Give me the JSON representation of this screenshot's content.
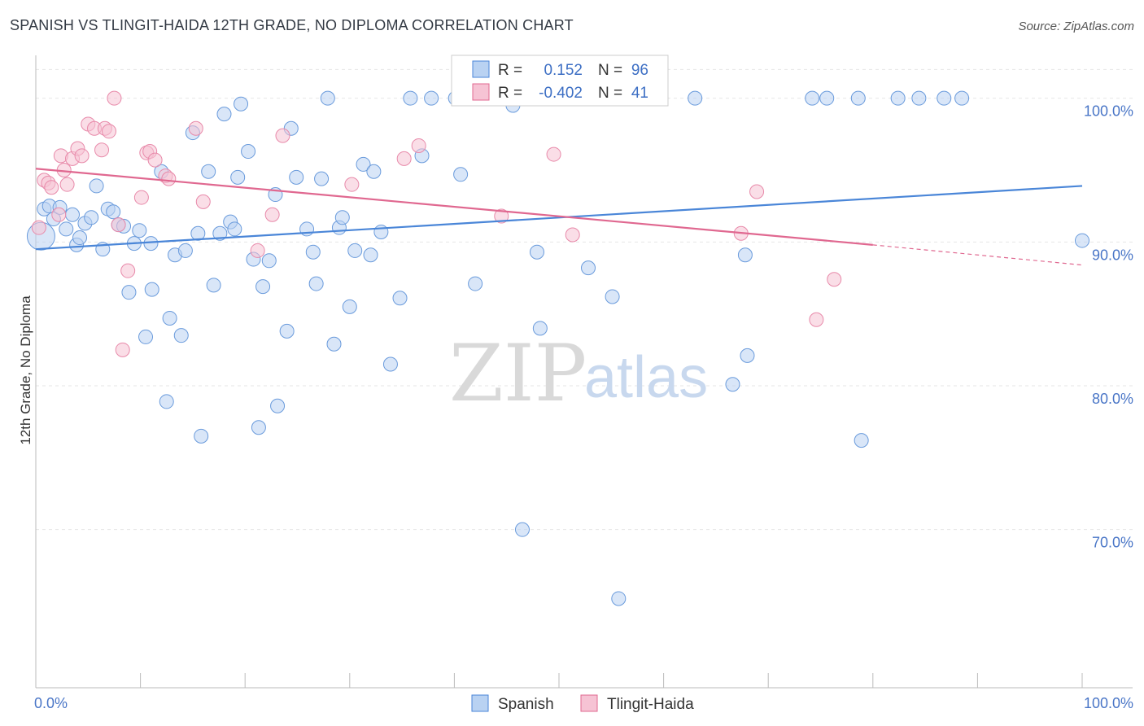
{
  "title": "SPANISH VS TLINGIT-HAIDA 12TH GRADE, NO DIPLOMA CORRELATION CHART",
  "source": "Source: ZipAtlas.com",
  "watermark": {
    "zip": "ZIP",
    "atlas": "atlas"
  },
  "colors": {
    "blue": "#4a86d8",
    "blue_fill": "#b9d2f2",
    "pink": "#e06890",
    "pink_fill": "#f6c3d4",
    "grid": "#e3e3e3",
    "axis_text": "#4a76c7"
  },
  "chart_data": {
    "type": "scatter",
    "title": "SPANISH VS TLINGIT-HAIDA 12TH GRADE, NO DIPLOMA CORRELATION CHART",
    "xlabel": "",
    "ylabel": "12th Grade, No Diploma",
    "xlim": [
      0,
      100
    ],
    "ylim": [
      59,
      104
    ],
    "x_tick_labels": [
      "0.0%",
      "100.0%"
    ],
    "y_ticks": [
      70,
      80,
      90,
      100
    ],
    "y_tick_labels": [
      "70.0%",
      "80.0%",
      "90.0%",
      "100.0%"
    ],
    "grid": true,
    "legend": {
      "position": "top-center",
      "entries": [
        {
          "series": "Spanish",
          "r_label": "R =",
          "r_value": "0.152",
          "n_label": "N =",
          "n_value": "96"
        },
        {
          "series": "Tlingit-Haida",
          "r_label": "R =",
          "r_value": "-0.402",
          "n_label": "N =",
          "n_value": "41"
        }
      ]
    },
    "series": [
      {
        "name": "Spanish",
        "color": "#4a86d8",
        "trend": {
          "x": [
            0,
            100
          ],
          "y": [
            89.5,
            93.9
          ]
        },
        "points": [
          [
            0.5,
            90.4
          ],
          [
            0.8,
            92.3
          ],
          [
            1.3,
            92.5
          ],
          [
            1.7,
            91.6
          ],
          [
            2.3,
            92.4
          ],
          [
            2.9,
            90.9
          ],
          [
            3.5,
            91.9
          ],
          [
            3.9,
            89.8
          ],
          [
            4.2,
            90.3
          ],
          [
            4.7,
            91.3
          ],
          [
            5.3,
            91.7
          ],
          [
            5.8,
            93.9
          ],
          [
            6.4,
            89.5
          ],
          [
            6.9,
            92.3
          ],
          [
            7.4,
            92.1
          ],
          [
            7.9,
            91.2
          ],
          [
            8.4,
            91.1
          ],
          [
            8.9,
            86.5
          ],
          [
            9.4,
            89.9
          ],
          [
            9.9,
            90.8
          ],
          [
            10.5,
            83.4
          ],
          [
            11.0,
            89.9
          ],
          [
            11.1,
            86.7
          ],
          [
            12.0,
            94.9
          ],
          [
            12.5,
            78.9
          ],
          [
            12.8,
            84.7
          ],
          [
            13.3,
            89.1
          ],
          [
            13.9,
            83.5
          ],
          [
            14.3,
            89.4
          ],
          [
            15.0,
            97.6
          ],
          [
            15.5,
            90.6
          ],
          [
            15.8,
            76.5
          ],
          [
            16.5,
            94.9
          ],
          [
            17.0,
            87.0
          ],
          [
            17.6,
            90.6
          ],
          [
            18.0,
            98.9
          ],
          [
            18.6,
            91.4
          ],
          [
            19.0,
            90.9
          ],
          [
            19.3,
            94.5
          ],
          [
            19.6,
            99.6
          ],
          [
            20.3,
            96.3
          ],
          [
            20.8,
            88.8
          ],
          [
            21.3,
            77.1
          ],
          [
            21.7,
            86.9
          ],
          [
            22.3,
            88.7
          ],
          [
            22.9,
            93.3
          ],
          [
            23.1,
            78.6
          ],
          [
            24.0,
            83.8
          ],
          [
            24.4,
            97.9
          ],
          [
            24.9,
            94.5
          ],
          [
            25.9,
            90.9
          ],
          [
            26.5,
            89.3
          ],
          [
            26.8,
            87.1
          ],
          [
            27.3,
            94.4
          ],
          [
            27.9,
            100.0
          ],
          [
            28.5,
            82.9
          ],
          [
            29.0,
            91.0
          ],
          [
            29.3,
            91.7
          ],
          [
            30.0,
            85.5
          ],
          [
            30.5,
            89.4
          ],
          [
            31.3,
            95.4
          ],
          [
            32.0,
            89.1
          ],
          [
            32.3,
            94.9
          ],
          [
            33.0,
            90.7
          ],
          [
            33.9,
            81.5
          ],
          [
            34.8,
            86.1
          ],
          [
            35.8,
            100.0
          ],
          [
            36.9,
            96.0
          ],
          [
            37.8,
            100.0
          ],
          [
            40.1,
            100.0
          ],
          [
            40.6,
            94.7
          ],
          [
            42.0,
            87.1
          ],
          [
            45.6,
            99.5
          ],
          [
            46.5,
            70.0
          ],
          [
            47.9,
            89.3
          ],
          [
            48.2,
            84.0
          ],
          [
            51.5,
            100.0
          ],
          [
            52.3,
            100.0
          ],
          [
            52.8,
            88.2
          ],
          [
            55.1,
            86.2
          ],
          [
            55.7,
            65.2
          ],
          [
            56.3,
            100.0
          ],
          [
            59.2,
            100.0
          ],
          [
            63.0,
            100.0
          ],
          [
            66.6,
            80.1
          ],
          [
            67.8,
            89.1
          ],
          [
            68.0,
            82.1
          ],
          [
            74.2,
            100.0
          ],
          [
            75.6,
            100.0
          ],
          [
            78.6,
            100.0
          ],
          [
            78.9,
            76.2
          ],
          [
            82.4,
            100.0
          ],
          [
            84.4,
            100.0
          ],
          [
            86.8,
            100.0
          ],
          [
            88.5,
            100.0
          ],
          [
            100.0,
            90.1
          ]
        ]
      },
      {
        "name": "Tlingit-Haida",
        "color": "#e06890",
        "trend": {
          "x": [
            0,
            80
          ],
          "y": [
            95.1,
            89.8
          ]
        },
        "trend_dashed": {
          "x": [
            80,
            100
          ],
          "y": [
            89.8,
            88.4
          ]
        },
        "points": [
          [
            0.3,
            91.0
          ],
          [
            0.8,
            94.3
          ],
          [
            1.2,
            94.1
          ],
          [
            1.5,
            93.8
          ],
          [
            2.2,
            91.9
          ],
          [
            2.4,
            96.0
          ],
          [
            2.7,
            95.0
          ],
          [
            3.0,
            94.0
          ],
          [
            3.5,
            95.8
          ],
          [
            4.0,
            96.5
          ],
          [
            4.4,
            96.0
          ],
          [
            5.0,
            98.2
          ],
          [
            5.6,
            97.9
          ],
          [
            6.3,
            96.4
          ],
          [
            6.6,
            97.9
          ],
          [
            7.0,
            97.7
          ],
          [
            7.5,
            100.0
          ],
          [
            7.9,
            91.2
          ],
          [
            8.3,
            82.5
          ],
          [
            8.8,
            88.0
          ],
          [
            10.1,
            93.1
          ],
          [
            10.6,
            96.2
          ],
          [
            10.9,
            96.3
          ],
          [
            11.4,
            95.7
          ],
          [
            12.4,
            94.6
          ],
          [
            12.7,
            94.4
          ],
          [
            15.3,
            97.9
          ],
          [
            16.0,
            92.8
          ],
          [
            21.2,
            89.4
          ],
          [
            22.6,
            91.9
          ],
          [
            23.6,
            97.4
          ],
          [
            30.2,
            94.0
          ],
          [
            35.2,
            95.8
          ],
          [
            36.6,
            96.7
          ],
          [
            44.5,
            91.8
          ],
          [
            49.5,
            96.1
          ],
          [
            51.3,
            90.5
          ],
          [
            67.4,
            90.6
          ],
          [
            68.9,
            93.5
          ],
          [
            74.6,
            84.6
          ],
          [
            76.3,
            87.4
          ]
        ]
      }
    ]
  },
  "bottom_legend": [
    {
      "label": "Spanish"
    },
    {
      "label": "Tlingit-Haida"
    }
  ]
}
